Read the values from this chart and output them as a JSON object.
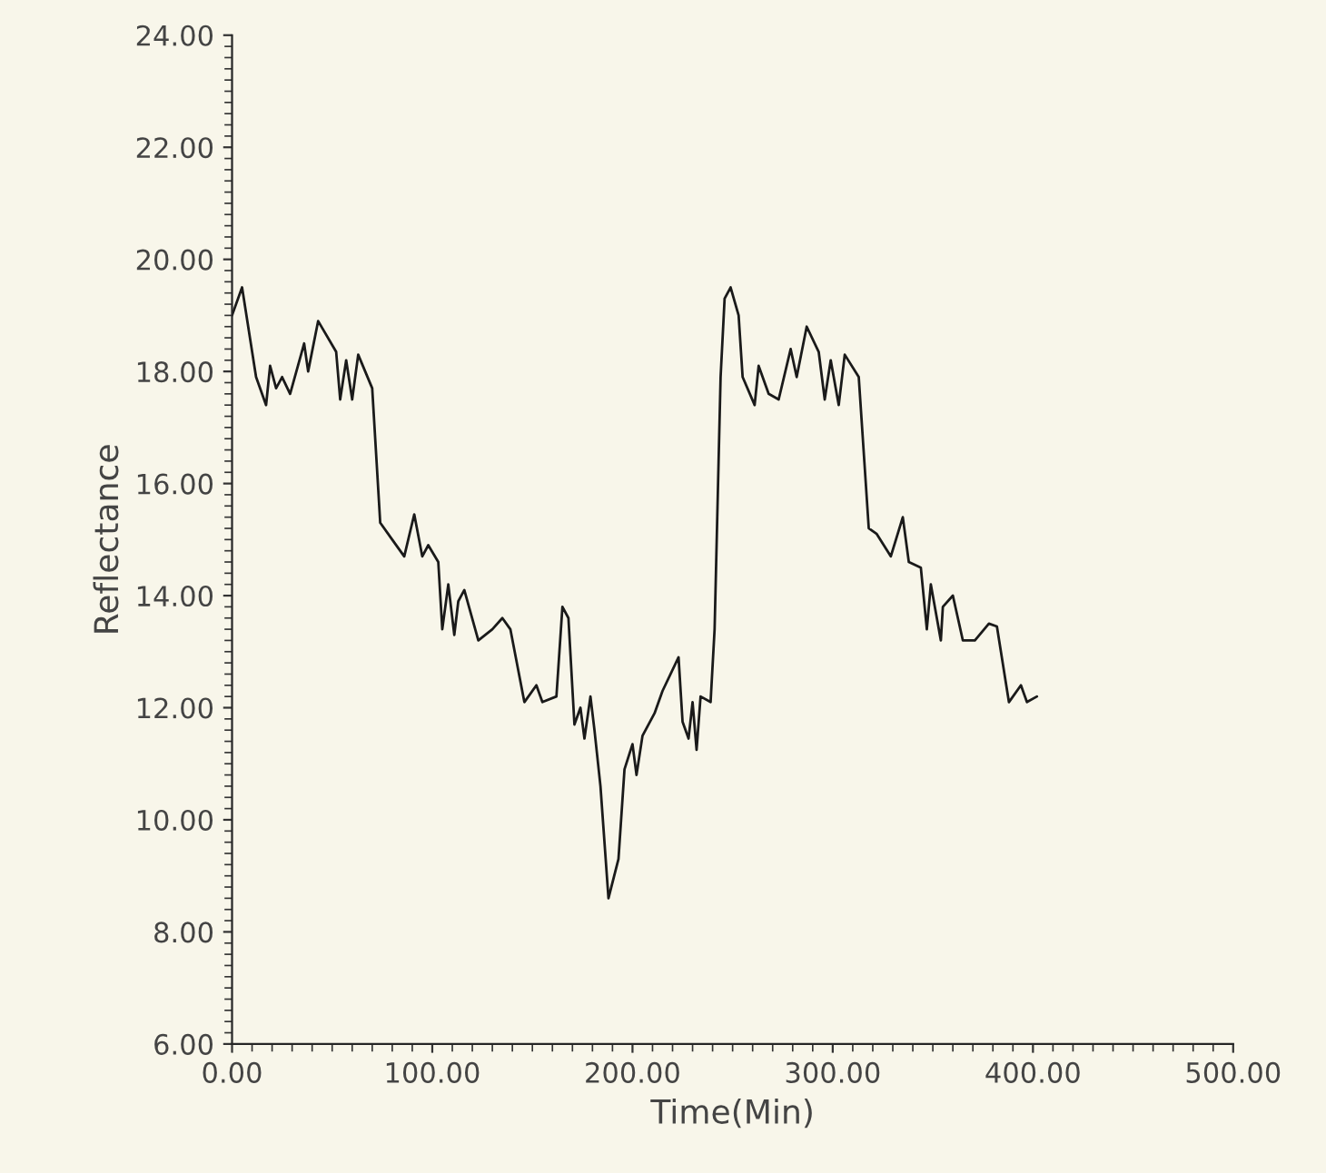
{
  "chart_data": {
    "type": "line",
    "xlabel": "Time(Min)",
    "ylabel": "Reflectance",
    "x": [
      0,
      5,
      12,
      17,
      19,
      22,
      25,
      29,
      36,
      38,
      43,
      52,
      54,
      57,
      60,
      63,
      70,
      74,
      80,
      86,
      91,
      95,
      98,
      103,
      105,
      108,
      111,
      113,
      116,
      123,
      130,
      135,
      139,
      146,
      152,
      155,
      162,
      165,
      168,
      171,
      174,
      176,
      179,
      181,
      184,
      188,
      193,
      196,
      200,
      202,
      205,
      211,
      215,
      223,
      225,
      228,
      230,
      232,
      234,
      239,
      241,
      244,
      246,
      249,
      253,
      255,
      261,
      263,
      268,
      273,
      279,
      282,
      287,
      293,
      296,
      299,
      303,
      306,
      313,
      318,
      322,
      329,
      335,
      338,
      344,
      347,
      349,
      354,
      355,
      360,
      365,
      371,
      378,
      382,
      388,
      394,
      397,
      402
    ],
    "series": [
      {
        "color": "#1a1a1a",
        "values": [
          19.0,
          19.5,
          17.9,
          17.4,
          18.1,
          17.7,
          17.9,
          17.6,
          18.5,
          18.0,
          18.9,
          18.35,
          17.5,
          18.2,
          17.5,
          18.3,
          17.7,
          15.3,
          15.0,
          14.7,
          15.45,
          14.7,
          14.9,
          14.6,
          13.4,
          14.2,
          13.3,
          13.9,
          14.1,
          13.2,
          13.4,
          13.6,
          13.4,
          12.1,
          12.4,
          12.1,
          12.2,
          13.8,
          13.6,
          11.7,
          12.0,
          11.45,
          12.2,
          11.6,
          10.6,
          8.6,
          9.3,
          10.9,
          11.35,
          10.8,
          11.5,
          11.9,
          12.3,
          12.9,
          11.75,
          11.45,
          12.1,
          11.25,
          12.2,
          12.1,
          13.4,
          17.9,
          19.3,
          19.5,
          19.0,
          17.9,
          17.4,
          18.1,
          17.6,
          17.5,
          18.4,
          17.9,
          18.8,
          18.35,
          17.5,
          18.2,
          17.4,
          18.3,
          17.9,
          15.2,
          15.1,
          14.7,
          15.4,
          14.6,
          14.5,
          13.4,
          14.2,
          13.2,
          13.8,
          14.0,
          13.2,
          13.2,
          13.5,
          13.45,
          12.1,
          12.4,
          12.1,
          12.2
        ]
      }
    ],
    "xlim": [
      0,
      500
    ],
    "ylim": [
      6,
      24
    ],
    "xticks": [
      {
        "value": 0,
        "label": "0.00"
      },
      {
        "value": 100,
        "label": "100.00"
      },
      {
        "value": 200,
        "label": "200.00"
      },
      {
        "value": 300,
        "label": "300.00"
      },
      {
        "value": 400,
        "label": "400.00"
      },
      {
        "value": 500,
        "label": "500.00"
      }
    ],
    "yticks": [
      {
        "value": 6,
        "label": "6.00"
      },
      {
        "value": 8,
        "label": "8.00"
      },
      {
        "value": 10,
        "label": "10.00"
      },
      {
        "value": 12,
        "label": "12.00"
      },
      {
        "value": 14,
        "label": "14.00"
      },
      {
        "value": 16,
        "label": "16.00"
      },
      {
        "value": 18,
        "label": "18.00"
      },
      {
        "value": 20,
        "label": "20.00"
      },
      {
        "value": 22,
        "label": "22.00"
      },
      {
        "value": 24,
        "label": "24.00"
      }
    ],
    "grid": false,
    "marker": "none",
    "line_style": "solid"
  }
}
